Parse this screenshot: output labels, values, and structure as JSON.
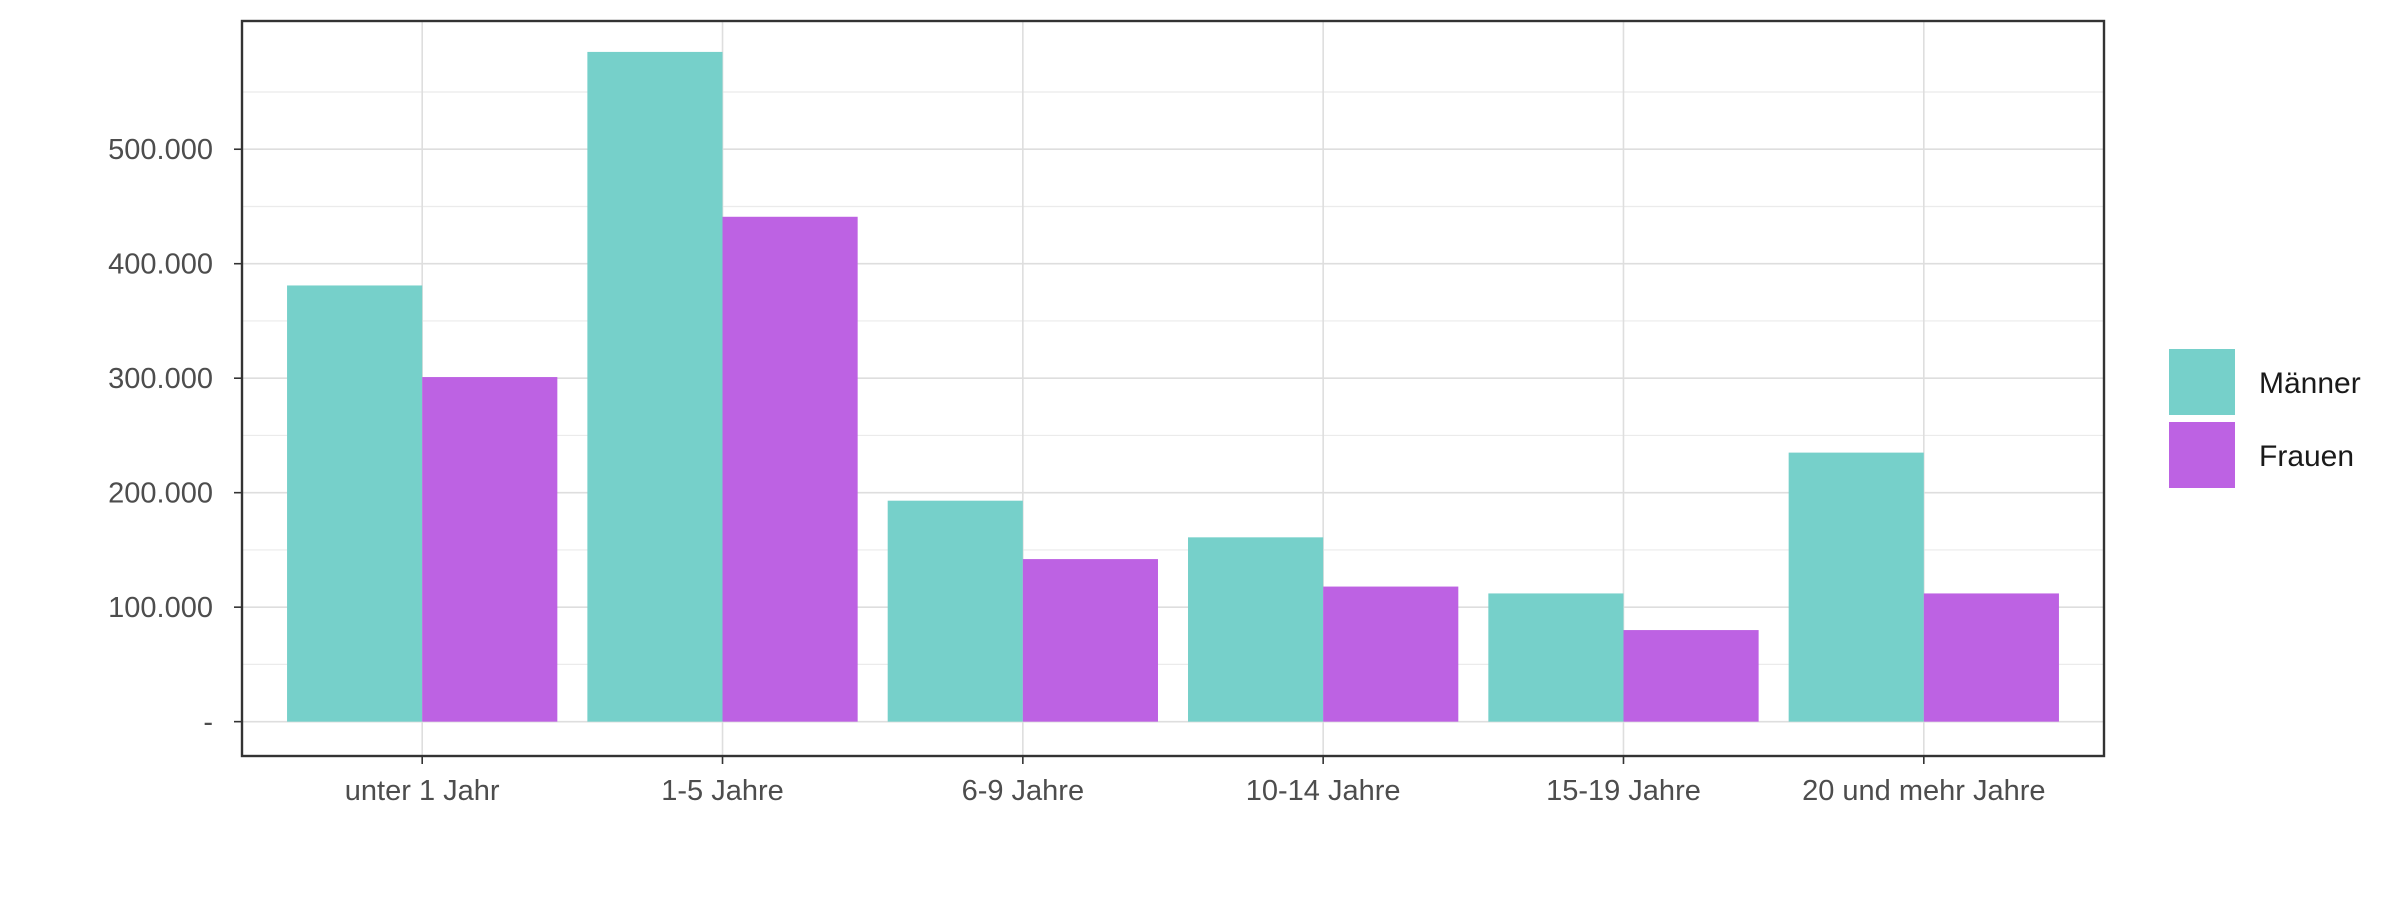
{
  "chart_data": {
    "type": "bar",
    "categories": [
      "unter 1 Jahr",
      "1-5 Jahre",
      "6-9 Jahre",
      "10-14 Jahre",
      "15-19 Jahre",
      "20 und mehr Jahre"
    ],
    "series": [
      {
        "name": "Männer",
        "color": "#76D0CA",
        "values": [
          381000,
          585000,
          193000,
          161000,
          112000,
          235000
        ]
      },
      {
        "name": "Frauen",
        "color": "#BD62E3",
        "values": [
          301000,
          441000,
          142000,
          118000,
          80000,
          112000
        ]
      }
    ],
    "y_ticks": [
      {
        "value": 0,
        "label": "-"
      },
      {
        "value": 100000,
        "label": "100.000"
      },
      {
        "value": 200000,
        "label": "200.000"
      },
      {
        "value": 300000,
        "label": "300.000"
      },
      {
        "value": 400000,
        "label": "400.000"
      },
      {
        "value": 500000,
        "label": "500.000"
      }
    ],
    "ylim": [
      -30000,
      612000
    ],
    "grid": true,
    "legend_position": "right"
  }
}
